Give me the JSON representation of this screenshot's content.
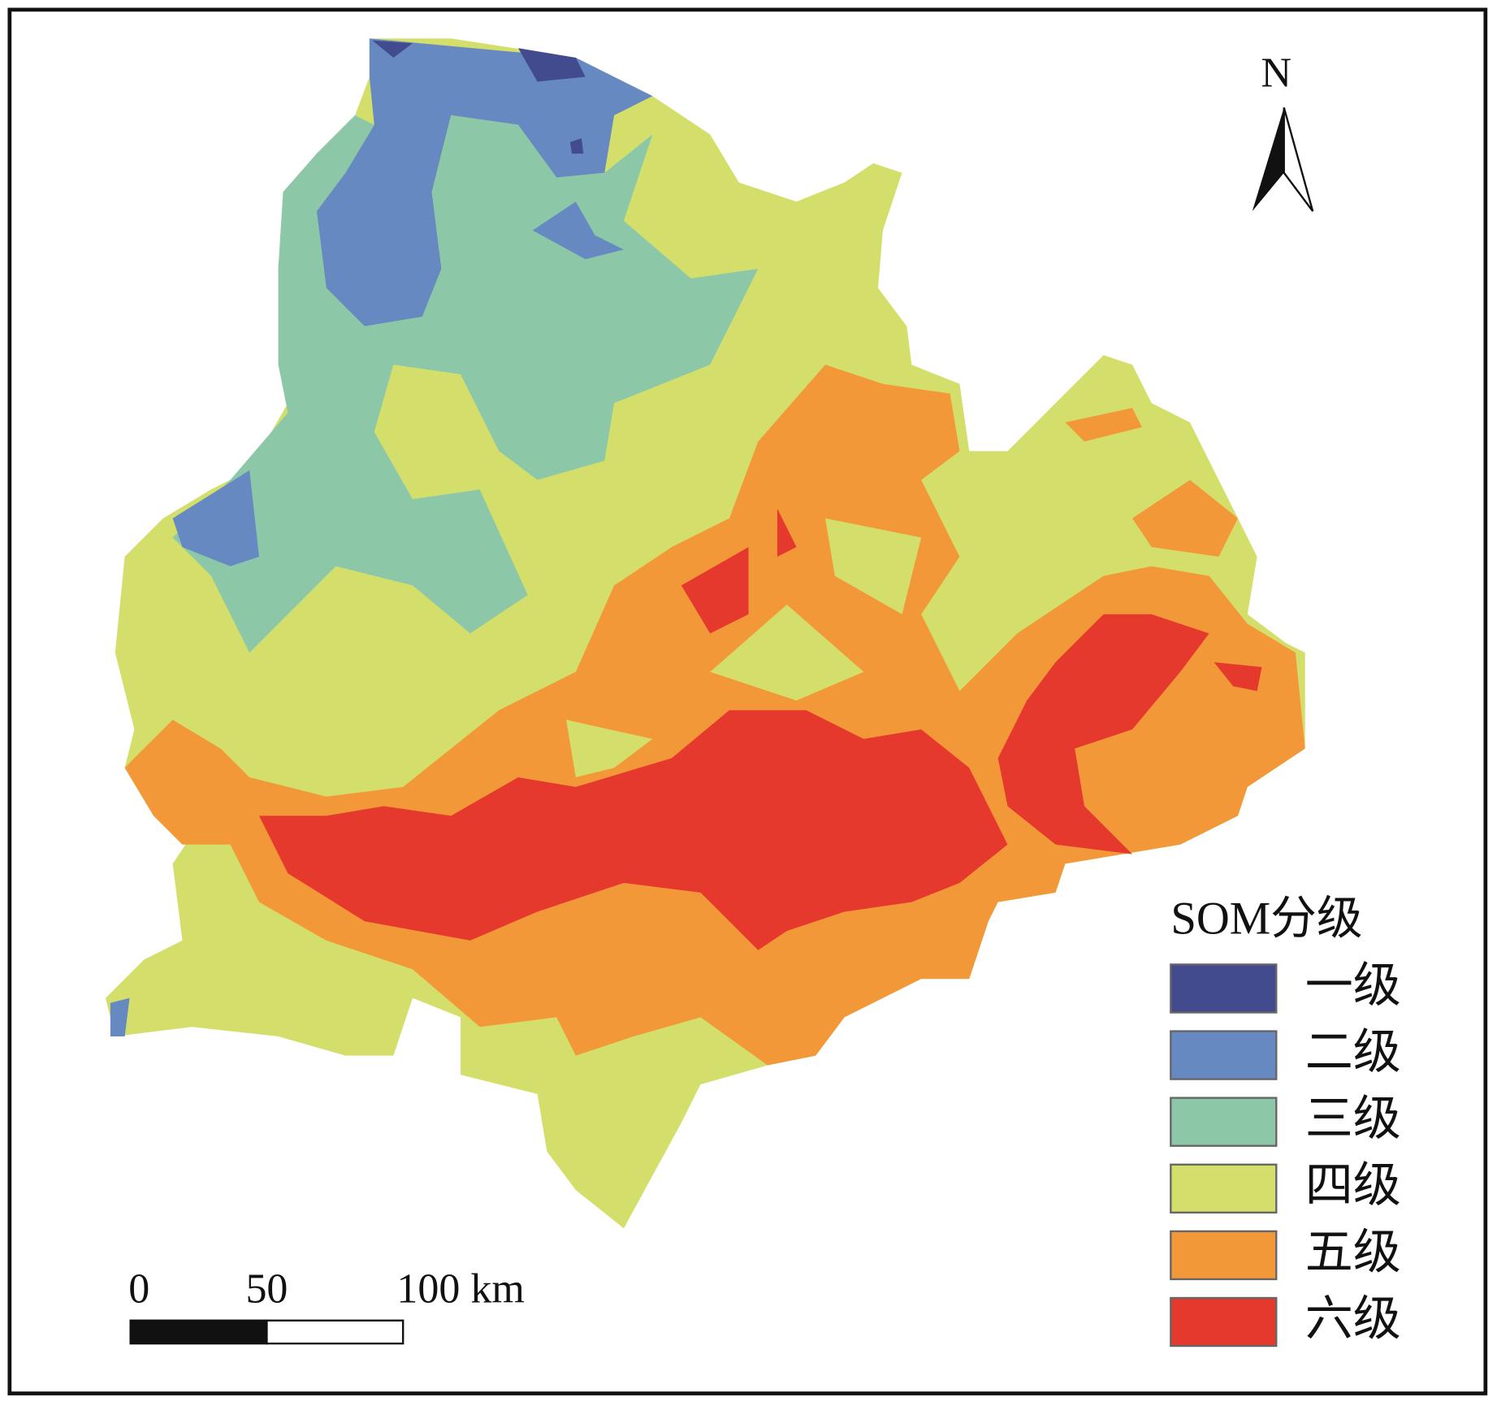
{
  "north_label": "N",
  "legend": {
    "title": "SOM分级",
    "items": [
      {
        "label": "一级",
        "color": "#414b8e"
      },
      {
        "label": "二级",
        "color": "#6689c1"
      },
      {
        "label": "三级",
        "color": "#8cc8a8"
      },
      {
        "label": "四级",
        "color": "#d4df6b"
      },
      {
        "label": "五级",
        "color": "#f29839"
      },
      {
        "label": "六级",
        "color": "#e5392d"
      }
    ]
  },
  "scale_bar": {
    "labels": [
      "0",
      "50",
      "100 km"
    ]
  }
}
